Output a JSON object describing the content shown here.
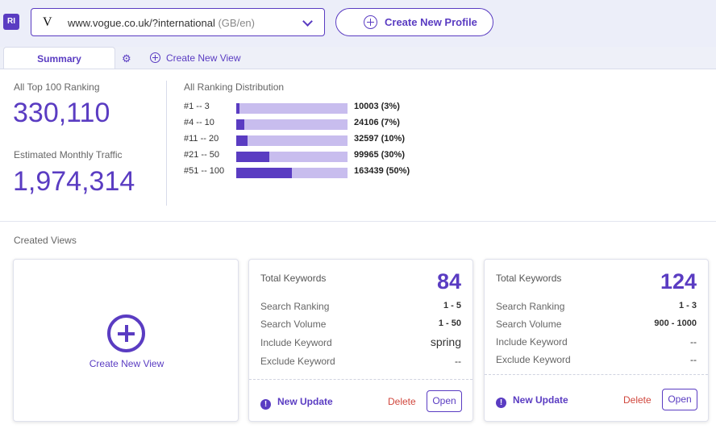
{
  "app": {
    "logo_text": "RI"
  },
  "site_selector": {
    "favicon": "V",
    "url": "www.vogue.co.uk/?international",
    "locale": "(GB/en)"
  },
  "header": {
    "create_profile_label": "Create New Profile"
  },
  "tabs": {
    "summary_label": "Summary",
    "create_view_label": "Create New View"
  },
  "stats": {
    "top100_label": "All Top 100 Ranking",
    "top100_value": "330,110",
    "traffic_label": "Estimated Monthly Traffic",
    "traffic_value": "1,974,314"
  },
  "distribution": {
    "title": "All Ranking Distribution",
    "rows": [
      {
        "range": "#1 -- 3",
        "count": "10003 (3%)",
        "percent": 3
      },
      {
        "range": "#4 -- 10",
        "count": "24106 (7%)",
        "percent": 7
      },
      {
        "range": "#11 -- 20",
        "count": "32597 (10%)",
        "percent": 10
      },
      {
        "range": "#21 -- 50",
        "count": "99965 (30%)",
        "percent": 30
      },
      {
        "range": "#51 -- 100",
        "count": "163439 (50%)",
        "percent": 50
      }
    ]
  },
  "created_views": {
    "title": "Created Views",
    "create_label": "Create New View",
    "cards": [
      {
        "total_label": "Total Keywords",
        "total_value": "84",
        "rows": [
          {
            "label": "Search Ranking",
            "value": "1 - 5"
          },
          {
            "label": "Search Volume",
            "value": "1 - 50"
          },
          {
            "label": "Include Keyword",
            "value": "spring"
          },
          {
            "label": "Exclude Keyword",
            "value": "--"
          }
        ],
        "update_label": "New Update",
        "delete_label": "Delete",
        "open_label": "Open"
      },
      {
        "total_label": "Total Keywords",
        "total_value": "124",
        "rows": [
          {
            "label": "Search Ranking",
            "value": "1 - 3"
          },
          {
            "label": "Search Volume",
            "value": "900 - 1000"
          },
          {
            "label": "Include Keyword",
            "value": "--"
          },
          {
            "label": "Exclude Keyword",
            "value": "--"
          }
        ],
        "update_label": "New Update",
        "delete_label": "Delete",
        "open_label": "Open"
      }
    ]
  }
}
